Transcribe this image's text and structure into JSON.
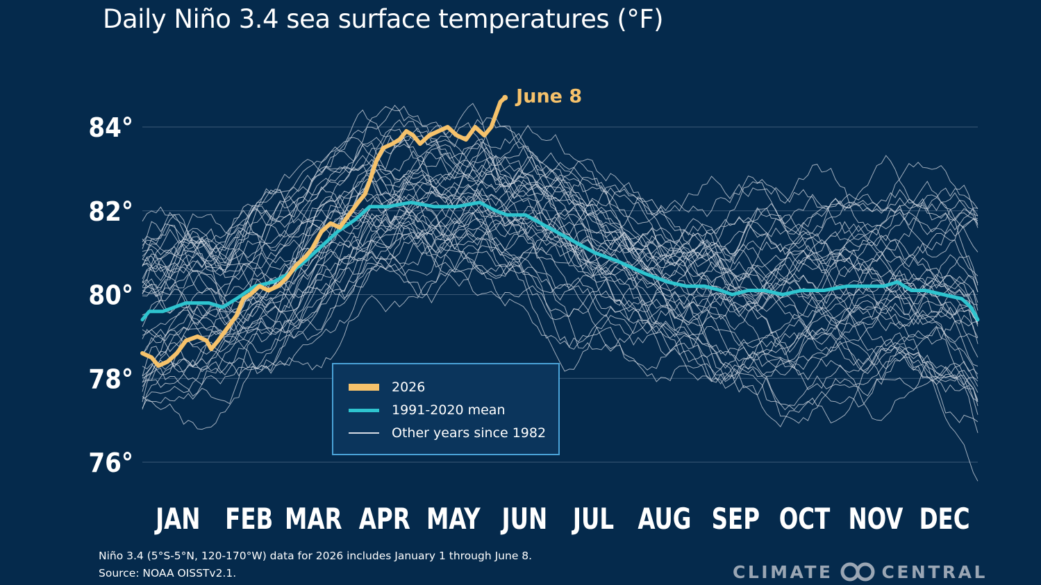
{
  "title": "Daily Niño 3.4 sea surface temperatures  (°F)",
  "footnote": {
    "line1": "Niño 3.4 (5°S-5°N, 120-170°W) data for 2026 includes January 1 through June 8.",
    "line2": "Source: NOAA OISSTv2.1."
  },
  "logo": {
    "left_text": "CLIMATE",
    "right_text": "CENTRAL",
    "mark_icon": "climate-central-infinity-icon"
  },
  "colors": {
    "background": "#052a4c",
    "year_2026": "#f6c26b",
    "mean": "#2ec4cf",
    "other_years": "#d8dde5",
    "legend_border": "#4aa3d8"
  },
  "legend": {
    "items": [
      {
        "label": "2026",
        "series": "2026"
      },
      {
        "label": "1991-2020 mean",
        "series": "mean"
      },
      {
        "label": "Other years since 1982",
        "series": "other"
      }
    ]
  },
  "chart_data": {
    "type": "line",
    "title": "Daily Niño 3.4 sea surface temperatures  (°F)",
    "xlabel": "",
    "ylabel": "",
    "x_unit": "day of year",
    "xlim": [
      1,
      365
    ],
    "ylim": [
      75.3,
      86
    ],
    "y_ticks": [
      76,
      78,
      80,
      82,
      84
    ],
    "y_tick_labels": [
      "76°",
      "78°",
      "80°",
      "82°",
      "84°"
    ],
    "x_tick_labels": [
      "JAN",
      "FEB",
      "MAR",
      "APR",
      "MAY",
      "JUN",
      "JUL",
      "AUG",
      "SEP",
      "OCT",
      "NOV",
      "DEC"
    ],
    "x_tick_days": [
      15,
      46,
      74,
      105,
      135,
      166,
      196,
      227,
      258,
      288,
      319,
      349
    ],
    "grid": true,
    "legend_placement": "bottom-center",
    "annotations": [
      {
        "text": "June 8",
        "series": "2026",
        "day": 159
      }
    ],
    "series": [
      {
        "name": "2026",
        "role": "highlight",
        "points": [
          [
            1,
            78.6
          ],
          [
            5,
            78.5
          ],
          [
            8,
            78.3
          ],
          [
            12,
            78.4
          ],
          [
            16,
            78.6
          ],
          [
            20,
            78.9
          ],
          [
            25,
            79.0
          ],
          [
            29,
            78.9
          ],
          [
            31,
            78.7
          ],
          [
            34,
            78.9
          ],
          [
            38,
            79.2
          ],
          [
            42,
            79.5
          ],
          [
            45,
            79.9
          ],
          [
            48,
            80.0
          ],
          [
            52,
            80.2
          ],
          [
            56,
            80.1
          ],
          [
            60,
            80.2
          ],
          [
            64,
            80.4
          ],
          [
            68,
            80.7
          ],
          [
            72,
            80.9
          ],
          [
            75,
            81.1
          ],
          [
            79,
            81.5
          ],
          [
            83,
            81.7
          ],
          [
            87,
            81.6
          ],
          [
            91,
            81.9
          ],
          [
            95,
            82.2
          ],
          [
            98,
            82.4
          ],
          [
            100,
            82.7
          ],
          [
            103,
            83.2
          ],
          [
            106,
            83.5
          ],
          [
            110,
            83.6
          ],
          [
            113,
            83.7
          ],
          [
            116,
            83.9
          ],
          [
            119,
            83.8
          ],
          [
            122,
            83.6
          ],
          [
            126,
            83.8
          ],
          [
            130,
            83.9
          ],
          [
            134,
            84.0
          ],
          [
            138,
            83.8
          ],
          [
            142,
            83.7
          ],
          [
            146,
            84.0
          ],
          [
            150,
            83.8
          ],
          [
            153,
            84.0
          ],
          [
            155,
            84.3
          ],
          [
            157,
            84.6
          ],
          [
            159,
            84.7
          ]
        ]
      },
      {
        "name": "1991-2020 mean",
        "role": "mean",
        "points": [
          [
            1,
            79.4
          ],
          [
            4,
            79.6
          ],
          [
            10,
            79.6
          ],
          [
            20,
            79.8
          ],
          [
            30,
            79.8
          ],
          [
            36,
            79.7
          ],
          [
            42,
            79.9
          ],
          [
            50,
            80.2
          ],
          [
            58,
            80.3
          ],
          [
            65,
            80.5
          ],
          [
            72,
            80.8
          ],
          [
            78,
            81.1
          ],
          [
            86,
            81.5
          ],
          [
            94,
            81.8
          ],
          [
            100,
            82.1
          ],
          [
            108,
            82.1
          ],
          [
            118,
            82.2
          ],
          [
            128,
            82.1
          ],
          [
            138,
            82.1
          ],
          [
            148,
            82.2
          ],
          [
            155,
            82.0
          ],
          [
            160,
            81.9
          ],
          [
            168,
            81.9
          ],
          [
            178,
            81.6
          ],
          [
            188,
            81.3
          ],
          [
            198,
            81.0
          ],
          [
            208,
            80.8
          ],
          [
            220,
            80.5
          ],
          [
            230,
            80.3
          ],
          [
            238,
            80.2
          ],
          [
            246,
            80.2
          ],
          [
            253,
            80.1
          ],
          [
            258,
            80.0
          ],
          [
            265,
            80.1
          ],
          [
            272,
            80.1
          ],
          [
            280,
            80.0
          ],
          [
            288,
            80.1
          ],
          [
            298,
            80.1
          ],
          [
            308,
            80.2
          ],
          [
            316,
            80.2
          ],
          [
            324,
            80.2
          ],
          [
            330,
            80.3
          ],
          [
            336,
            80.1
          ],
          [
            342,
            80.1
          ],
          [
            350,
            80.0
          ],
          [
            358,
            79.9
          ],
          [
            362,
            79.7
          ],
          [
            365,
            79.4
          ]
        ]
      }
    ],
    "other_years_description": "background series for other years since 1982",
    "other_years_count": 43
  }
}
